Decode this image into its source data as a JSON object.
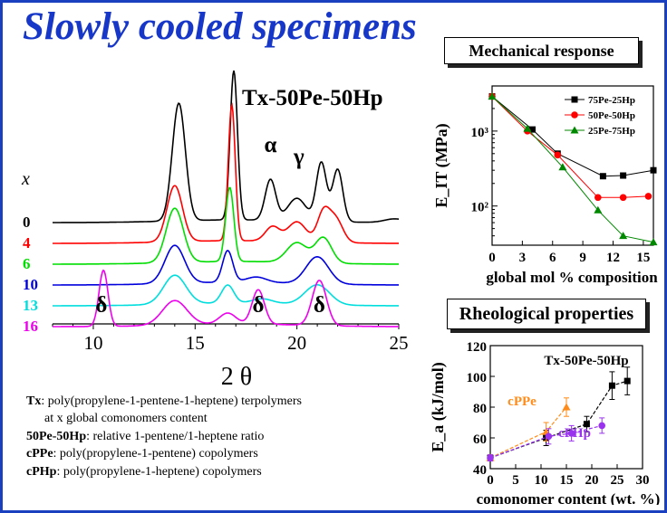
{
  "title": "Slowly cooled specimens",
  "mech_box_title": "Mechanical response",
  "rheo_box_title": "Rheological properties",
  "legend_lines": [
    {
      "key": "Tx",
      "text": ": poly(propylene-1-pentene-1-heptene) terpolymers"
    },
    {
      "key": "",
      "text": "at x global comonomers content"
    },
    {
      "key": "50Pe-50Hp",
      "text": ": relative 1-pentene/1-heptene ratio"
    },
    {
      "key": "cPPe",
      "text": ": poly(propylene-1-pentene) copolymers"
    },
    {
      "key": "cPHp",
      "text": ": poly(propylene-1-heptene) copolymers"
    }
  ],
  "chart_data": [
    {
      "type": "line",
      "title": "Tx-50Pe-50Hp",
      "xlabel": "2 θ",
      "ylabel": "",
      "xlim": [
        8,
        25
      ],
      "xticks": [
        10,
        15,
        20,
        25
      ],
      "legend_title": "x",
      "peak_labels": [
        {
          "text": "α",
          "x": 18.7
        },
        {
          "text": "γ",
          "x": 20.1
        },
        {
          "text": "δ",
          "x": 10.4
        },
        {
          "text": "δ",
          "x": 18.1
        },
        {
          "text": "δ",
          "x": 21.1
        }
      ],
      "series": [
        {
          "name": "0",
          "color": "#000000",
          "offset": 5,
          "peaks": [
            [
              14.2,
              130,
              0.32
            ],
            [
              16.9,
              165,
              0.18
            ],
            [
              18.7,
              45,
              0.26
            ],
            [
              20.0,
              25,
              0.45
            ],
            [
              21.2,
              65,
              0.25
            ],
            [
              22.0,
              58,
              0.25
            ],
            [
              24.8,
              4,
              0.5
            ]
          ]
        },
        {
          "name": "4",
          "color": "#ff0000",
          "offset": 4,
          "peaks": [
            [
              14.0,
              62,
              0.38
            ],
            [
              16.8,
              150,
              0.17
            ],
            [
              18.8,
              16,
              0.35
            ],
            [
              20.0,
              22,
              0.45
            ],
            [
              21.3,
              32,
              0.3
            ],
            [
              21.9,
              26,
              0.35
            ]
          ]
        },
        {
          "name": "6",
          "color": "#00dd00",
          "offset": 3,
          "peaks": [
            [
              14.0,
              60,
              0.42
            ],
            [
              16.7,
              82,
              0.2
            ],
            [
              20.0,
              22,
              0.5
            ],
            [
              21.3,
              28,
              0.4
            ]
          ]
        },
        {
          "name": "10",
          "color": "#0000dd",
          "offset": 2,
          "peaks": [
            [
              14.0,
              42,
              0.48
            ],
            [
              16.6,
              35,
              0.25
            ],
            [
              18.0,
              6,
              0.5
            ],
            [
              21.0,
              30,
              0.55
            ]
          ]
        },
        {
          "name": "13",
          "color": "#00dddd",
          "offset": 1,
          "peaks": [
            [
              14.0,
              32,
              0.55
            ],
            [
              16.6,
              20,
              0.3
            ],
            [
              18.3,
              5,
              0.5
            ],
            [
              21.0,
              22,
              0.6
            ]
          ]
        },
        {
          "name": "16",
          "color": "#ee00ee",
          "offset": 0,
          "peaks": [
            [
              10.5,
              62,
              0.22
            ],
            [
              14.0,
              27,
              0.6
            ],
            [
              16.6,
              12,
              0.4
            ],
            [
              18.1,
              38,
              0.3
            ],
            [
              21.1,
              50,
              0.35
            ]
          ]
        }
      ]
    },
    {
      "type": "line",
      "title": "",
      "xlabel": "global mol % composition",
      "ylabel": "E_IT (MPa)",
      "yscale": "log",
      "xlim": [
        0,
        16
      ],
      "ylim": [
        30,
        4000
      ],
      "xticks": [
        0,
        3,
        6,
        9,
        12,
        15
      ],
      "yticks": [
        {
          "v": 100,
          "label": "10²"
        },
        {
          "v": 1000,
          "label": "10³"
        }
      ],
      "legend_position": "top-right",
      "series": [
        {
          "name": "75Pe-25Hp",
          "color": "#000000",
          "marker": "square",
          "x": [
            0,
            4,
            6.5,
            11,
            13,
            16
          ],
          "y": [
            2900,
            1050,
            500,
            250,
            255,
            300
          ]
        },
        {
          "name": "50Pe-50Hp",
          "color": "#ff0000",
          "marker": "circle",
          "x": [
            0,
            3.5,
            6.5,
            10.5,
            13,
            15.5
          ],
          "y": [
            2900,
            1000,
            480,
            130,
            130,
            135
          ]
        },
        {
          "name": "25Pe-75Hp",
          "color": "#008800",
          "marker": "triangle",
          "x": [
            0,
            3.5,
            7,
            10.5,
            13,
            16
          ],
          "y": [
            2900,
            1080,
            330,
            88,
            40,
            33
          ]
        }
      ]
    },
    {
      "type": "scatter",
      "title": "Tx-50Pe-50Hp",
      "xlabel": "comonomer content (wt. %)",
      "ylabel": "E_a (kJ/mol)",
      "xlim": [
        0,
        30
      ],
      "ylim": [
        40,
        120
      ],
      "xticks": [
        0,
        5,
        10,
        15,
        20,
        25,
        30
      ],
      "yticks": [
        40,
        60,
        80,
        100,
        120
      ],
      "series": [
        {
          "name": "Tx-50Pe-50Hp",
          "color": "#000000",
          "marker": "square",
          "x": [
            0,
            11,
            19,
            24,
            27
          ],
          "y": [
            47,
            60,
            69,
            94,
            97
          ],
          "err": [
            2,
            5,
            5,
            9,
            9
          ]
        },
        {
          "name": "cPPe",
          "color": "#ff8c1a",
          "marker": "triangle",
          "x": [
            0,
            11,
            15
          ],
          "y": [
            47,
            64,
            80
          ],
          "err": [
            2,
            6,
            6
          ]
        },
        {
          "name": "cPHp",
          "color": "#9933ee",
          "marker": "circle",
          "x": [
            0,
            11.5,
            16,
            22
          ],
          "y": [
            47,
            61,
            63,
            68
          ],
          "err": [
            2,
            5,
            5,
            5
          ]
        }
      ]
    }
  ]
}
